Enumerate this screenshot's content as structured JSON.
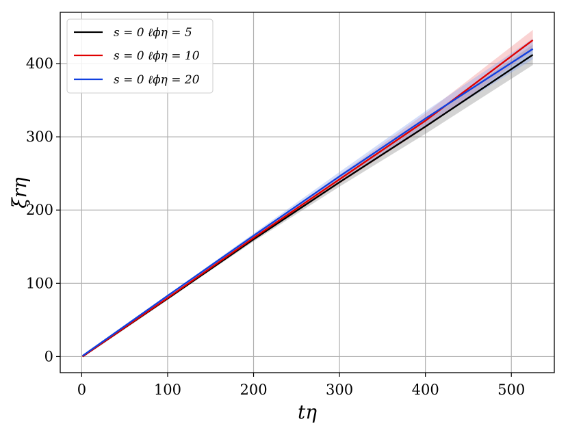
{
  "chart_data": {
    "type": "line",
    "title": "",
    "xlabel": "tη",
    "ylabel": "ξrη",
    "xlim": [
      -25,
      550
    ],
    "ylim": [
      -22,
      470
    ],
    "xticks": [
      0,
      100,
      200,
      300,
      400,
      500
    ],
    "yticks": [
      0,
      100,
      200,
      300,
      400
    ],
    "grid": true,
    "legend_position": "top-left",
    "series": [
      {
        "name": "s = 0 ℓϕη = 5",
        "color": "#000000",
        "band_color": "#808080",
        "x": [
          1,
          100,
          200,
          300,
          400,
          525
        ],
        "y": [
          0,
          79,
          160,
          238,
          314,
          412
        ],
        "band_low": [
          0,
          78,
          157,
          232,
          304,
          398
        ],
        "band_high": [
          1,
          80,
          163,
          244,
          324,
          426
        ]
      },
      {
        "name": "s = 0 ℓϕη = 10",
        "color": "#e00000",
        "band_color": "#f08080",
        "x": [
          1,
          100,
          200,
          300,
          400,
          525
        ],
        "y": [
          0,
          80,
          162,
          242,
          322,
          432
        ],
        "band_low": [
          0,
          79,
          159,
          236,
          312,
          418
        ],
        "band_high": [
          1,
          81,
          165,
          248,
          332,
          446
        ]
      },
      {
        "name": "s = 0 ℓϕη = 20",
        "color": "#1040e0",
        "band_color": "#80a0f0",
        "x": [
          1,
          100,
          200,
          300,
          400,
          525
        ],
        "y": [
          1,
          83,
          165,
          246,
          325,
          420
        ],
        "band_low": [
          0,
          82,
          162,
          240,
          315,
          406
        ],
        "band_high": [
          2,
          84,
          168,
          252,
          335,
          434
        ]
      }
    ]
  }
}
